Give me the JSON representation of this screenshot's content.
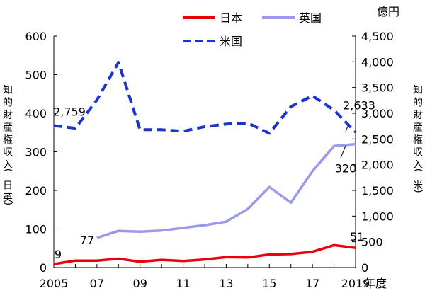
{
  "chart_data": {
    "type": "line",
    "x": [
      2005,
      2006,
      2007,
      2008,
      2009,
      2010,
      2011,
      2012,
      2013,
      2014,
      2015,
      2016,
      2017,
      2018,
      2019
    ],
    "x_tick_labels": [
      "2005",
      "07",
      "09",
      "11",
      "13",
      "15",
      "17",
      "2019"
    ],
    "x_tick_values": [
      2005,
      2007,
      2009,
      2011,
      2013,
      2015,
      2017,
      2019
    ],
    "xlabel": "年度",
    "left_axis": {
      "label": "知的財産権収入(日英)",
      "ylim": [
        0,
        600
      ],
      "ticks": [
        0,
        100,
        200,
        300,
        400,
        500,
        600
      ],
      "tick_labels": [
        "0",
        "100",
        "200",
        "300",
        "400",
        "500",
        "600"
      ]
    },
    "right_axis": {
      "unit": "億円",
      "label": "知的財産権収入(米)",
      "ylim": [
        0,
        4500
      ],
      "ticks": [
        0,
        500,
        1000,
        1500,
        2000,
        2500,
        3000,
        3500,
        4000,
        4500
      ],
      "tick_labels": [
        "0",
        "500",
        "1,000",
        "1,500",
        "2,000",
        "2,500",
        "3,000",
        "3,500",
        "4,000",
        "4,500"
      ]
    },
    "series": [
      {
        "name": "日本",
        "axis": "left",
        "color": "#e8000b",
        "style": "solid",
        "values": [
          9,
          18,
          18,
          23,
          15,
          20,
          17,
          21,
          27,
          26,
          34,
          35,
          41,
          58,
          51
        ]
      },
      {
        "name": "英国",
        "axis": "left",
        "color": "#9999ee",
        "style": "solid",
        "values": [
          null,
          null,
          77,
          95,
          93,
          96,
          103,
          110,
          119,
          152,
          209,
          168,
          250,
          315,
          320
        ]
      },
      {
        "name": "米国",
        "axis": "right",
        "color": "#1a33cc",
        "style": "dashed",
        "values": [
          2759,
          2710,
          3260,
          3990,
          2680,
          2680,
          2650,
          2740,
          2790,
          2810,
          2610,
          3130,
          3340,
          3060,
          2633
        ]
      }
    ],
    "annotations": [
      {
        "text": "9",
        "series": "日本",
        "x": 2005
      },
      {
        "text": "51",
        "series": "日本",
        "x": 2019
      },
      {
        "text": "77",
        "series": "英国",
        "x": 2007
      },
      {
        "text": "320",
        "series": "英国",
        "x": 2019
      },
      {
        "text": "2,759",
        "series": "米国",
        "x": 2005
      },
      {
        "text": "2,633",
        "series": "米国",
        "x": 2019
      }
    ],
    "legend_position": "top",
    "grid": false
  }
}
